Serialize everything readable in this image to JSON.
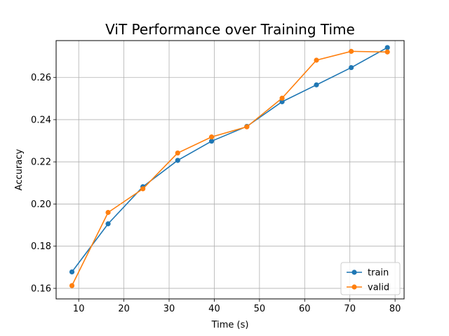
{
  "chart_data": {
    "type": "line",
    "title": "ViT Performance over Training Time",
    "xlabel": "Time (s)",
    "ylabel": "Accuracy",
    "xlim": [
      5,
      82
    ],
    "ylim": [
      0.155,
      0.2775
    ],
    "xticks": [
      10,
      20,
      30,
      40,
      50,
      60,
      70,
      80
    ],
    "yticks": [
      0.16,
      0.18,
      0.2,
      0.22,
      0.24,
      0.26
    ],
    "xtick_labels": [
      "10",
      "20",
      "30",
      "40",
      "50",
      "60",
      "70",
      "80"
    ],
    "ytick_labels": [
      "0.16",
      "0.18",
      "0.20",
      "0.22",
      "0.24",
      "0.26"
    ],
    "grid": true,
    "legend_position": "bottom-right",
    "series": [
      {
        "name": "train",
        "color": "#1f77b4",
        "x": [
          8.5,
          16.5,
          24.2,
          31.9,
          39.4,
          47.2,
          55.0,
          62.6,
          70.3,
          78.3
        ],
        "y": [
          0.1678,
          0.1906,
          0.2082,
          0.2207,
          0.2298,
          0.2368,
          0.2485,
          0.2565,
          0.2647,
          0.2742
        ]
      },
      {
        "name": "valid",
        "color": "#ff7f0e",
        "x": [
          8.5,
          16.5,
          24.2,
          31.9,
          39.4,
          47.2,
          55.0,
          62.6,
          70.3,
          78.3
        ],
        "y": [
          0.1613,
          0.196,
          0.2072,
          0.2242,
          0.2318,
          0.2366,
          0.2502,
          0.2682,
          0.2724,
          0.2721
        ]
      }
    ]
  }
}
